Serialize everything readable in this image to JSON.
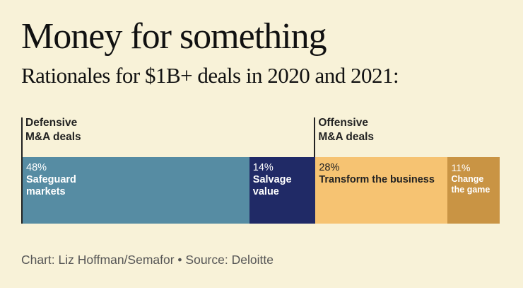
{
  "title": "Money for something",
  "subtitle": "Rationales for $1B+ deals in 2020 and 2021:",
  "footer": "Chart: Liz Hoffman/Semafor • Source: Deloitte",
  "chart_data": {
    "type": "bar",
    "orientation": "horizontal-stacked",
    "title": "Money for something",
    "subtitle": "Rationales for $1B+ deals in 2020 and 2021:",
    "groups": [
      {
        "label": "Defensive\nM&A deals",
        "label_lines": [
          "Defensive",
          "M&A deals"
        ],
        "segments": [
          0,
          1
        ]
      },
      {
        "label": "Offensive\nM&A deals",
        "label_lines": [
          "Offensive",
          "M&A deals"
        ],
        "segments": [
          2,
          3
        ]
      }
    ],
    "segments": [
      {
        "name": "Safeguard markets",
        "label_lines": [
          "Safeguard",
          "markets"
        ],
        "value": 48,
        "display": "48%",
        "color": "#568ca3",
        "text_color": "#ffffff"
      },
      {
        "name": "Salvage value",
        "label_lines": [
          "Salvage",
          "value"
        ],
        "value": 14,
        "display": "14%",
        "color": "#202a66",
        "text_color": "#ffffff"
      },
      {
        "name": "Transform the business",
        "label_lines": [
          "Transform the business"
        ],
        "value": 28,
        "display": "28%",
        "color": "#f6c372",
        "text_color": "#222222"
      },
      {
        "name": "Change the game",
        "label_lines": [
          "Change",
          "the game"
        ],
        "value": 11,
        "display": "11%",
        "color": "#c99444",
        "text_color": "#ffffff"
      }
    ],
    "unit": "%",
    "source": "Deloitte",
    "credit": "Liz Hoffman/Semafor"
  }
}
